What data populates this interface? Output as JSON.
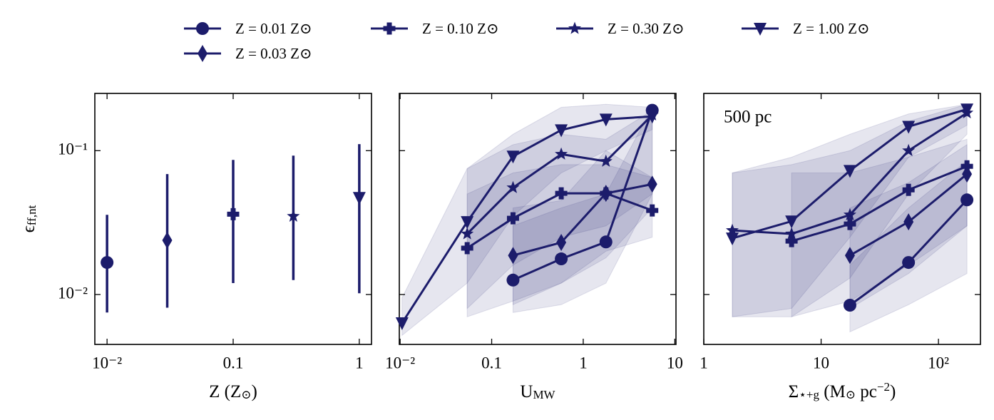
{
  "chart_data": [
    {
      "type": "errorbar",
      "xlabel_parts": [
        {
          "text": "Z (Z"
        },
        {
          "text": "⊙",
          "sub": true
        },
        {
          "text": ")"
        }
      ],
      "ylabel_parts": [
        {
          "text": "ϵ"
        },
        {
          "text": "ff,nt",
          "sub": true
        }
      ],
      "xscale": "log",
      "yscale": "log",
      "xlim": [
        0.008,
        1.25
      ],
      "ylim": [
        0.0045,
        0.25
      ],
      "xticks": [
        {
          "value": 0.01,
          "label": "10⁻²"
        },
        0.1,
        1
      ],
      "yticks": [
        {
          "value": 0.01,
          "label": "10⁻²"
        },
        {
          "value": 0.1,
          "label": "10⁻¹"
        }
      ],
      "ytick_labels": true,
      "series": [
        {
          "name": "Z = 0.01 Z⊙",
          "color": "#1c1c6b",
          "marker": "circle",
          "x": [
            0.01
          ],
          "values": [
            0.0167
          ],
          "yerr_low": [
            0.0075
          ],
          "yerr_high": [
            0.0358
          ]
        },
        {
          "name": "Z = 0.03 Z⊙",
          "color": "#1c1c6b",
          "marker": "diamond",
          "x": [
            0.03
          ],
          "values": [
            0.0238
          ],
          "yerr_low": [
            0.0081
          ],
          "yerr_high": [
            0.0687
          ]
        },
        {
          "name": "Z = 0.10 Z⊙",
          "color": "#1c1c6b",
          "marker": "plus",
          "x": [
            0.1
          ],
          "values": [
            0.0362
          ],
          "yerr_low": [
            0.012
          ],
          "yerr_high": [
            0.0863
          ]
        },
        {
          "name": "Z = 0.30 Z⊙",
          "color": "#1c1c6b",
          "marker": "star",
          "x": [
            0.3
          ],
          "values": [
            0.035
          ],
          "yerr_low": [
            0.0126
          ],
          "yerr_high": [
            0.0923
          ]
        },
        {
          "name": "Z = 1.00 Z⊙",
          "color": "#1c1c6b",
          "marker": "triangle_down",
          "x": [
            1
          ],
          "values": [
            0.0471
          ],
          "yerr_low": [
            0.0102
          ],
          "yerr_high": [
            0.111
          ]
        }
      ]
    },
    {
      "type": "line",
      "xlabel_parts": [
        {
          "text": "U"
        },
        {
          "text": "MW",
          "sub": true
        }
      ],
      "xscale": "log",
      "yscale": "log",
      "xlim": [
        0.0098,
        10.3
      ],
      "ylim": [
        0.0045,
        0.25
      ],
      "xticks": [
        {
          "value": 0.01,
          "label": "10⁻²"
        },
        0.1,
        1,
        10
      ],
      "yticks": [
        0.01,
        0.1
      ],
      "ytick_labels": false,
      "series": [
        {
          "color": "#1c1c6b",
          "marker": "circle",
          "x": [
            0.171,
            0.575,
            1.77,
            5.67
          ],
          "values": [
            0.0126,
            0.0177,
            0.0232,
            0.191
          ],
          "band_low": [
            0.0075,
            0.0085,
            0.012,
            0.05
          ],
          "band_high": [
            0.03,
            0.04,
            0.05,
            0.2
          ]
        },
        {
          "color": "#1c1c6b",
          "marker": "diamond",
          "x": [
            0.171,
            0.575,
            1.77,
            5.67
          ],
          "values": [
            0.0187,
            0.023,
            0.0505,
            0.0585
          ],
          "band_low": [
            0.0085,
            0.012,
            0.018,
            0.04
          ],
          "band_high": [
            0.04,
            0.045,
            0.1,
            0.065
          ]
        },
        {
          "color": "#1c1c6b",
          "marker": "plus",
          "x": [
            0.054,
            0.171,
            0.575,
            1.77,
            5.67
          ],
          "values": [
            0.021,
            0.0339,
            0.0505,
            0.0505,
            0.0384
          ],
          "band_low": [
            0.007,
            0.009,
            0.012,
            0.02,
            0.025
          ],
          "band_high": [
            0.05,
            0.07,
            0.08,
            0.08,
            0.065
          ]
        },
        {
          "color": "#1c1c6b",
          "marker": "star",
          "x": [
            0.054,
            0.171,
            0.575,
            1.77,
            5.67
          ],
          "values": [
            0.0264,
            0.0553,
            0.0945,
            0.0843,
            0.177
          ],
          "band_low": [
            0.008,
            0.016,
            0.025,
            0.03,
            0.05
          ],
          "band_high": [
            0.075,
            0.11,
            0.13,
            0.12,
            0.19
          ]
        },
        {
          "color": "#1c1c6b",
          "marker": "triangle_down",
          "x": [
            0.0105,
            0.054,
            0.171,
            0.575,
            1.77,
            5.67
          ],
          "values": [
            0.00634,
            0.032,
            0.0913,
            0.139,
            0.165,
            0.173
          ],
          "band_low": [
            0.0052,
            0.012,
            0.035,
            0.07,
            0.1,
            0.14
          ],
          "band_high": [
            0.0095,
            0.075,
            0.13,
            0.2,
            0.21,
            0.2
          ]
        }
      ]
    },
    {
      "type": "line",
      "xlabel_parts": [
        {
          "text": "Σ"
        },
        {
          "text": "⋆+g",
          "sub": true
        },
        {
          "text": " (M"
        },
        {
          "text": "⊙",
          "sub": true
        },
        {
          "text": " pc"
        },
        {
          "text": "−2",
          "sup": true
        },
        {
          "text": ")"
        }
      ],
      "annotation": "500 pc",
      "xscale": "log",
      "yscale": "log",
      "xlim": [
        1,
        228
      ],
      "ylim": [
        0.0045,
        0.25
      ],
      "xticks": [
        1,
        10,
        {
          "value": 100,
          "label": "10²"
        }
      ],
      "yticks": [
        0.01,
        0.1
      ],
      "ytick_labels": false,
      "series": [
        {
          "color": "#1c1c6b",
          "marker": "circle",
          "x": [
            17.6,
            55.6,
            175
          ],
          "values": [
            0.00843,
            0.0167,
            0.0455
          ],
          "band_low": [
            0.0055,
            0.0085,
            0.014
          ],
          "band_high": [
            0.016,
            0.04,
            0.085
          ]
        },
        {
          "color": "#1c1c6b",
          "marker": "diamond",
          "x": [
            17.6,
            55.6,
            175
          ],
          "values": [
            0.0187,
            0.032,
            0.0687
          ],
          "band_low": [
            0.008,
            0.014,
            0.03
          ],
          "band_high": [
            0.04,
            0.06,
            0.11
          ]
        },
        {
          "color": "#1c1c6b",
          "marker": "plus",
          "x": [
            5.6,
            17.6,
            55.6,
            175
          ],
          "values": [
            0.0235,
            0.0309,
            0.0534,
            0.0778
          ],
          "band_low": [
            0.007,
            0.009,
            0.016,
            0.03
          ],
          "band_high": [
            0.07,
            0.07,
            0.09,
            0.12
          ]
        },
        {
          "color": "#1c1c6b",
          "marker": "star",
          "x": [
            1.75,
            5.6,
            17.6,
            55.6,
            175
          ],
          "values": [
            0.0279,
            0.0264,
            0.0358,
            0.1,
            0.183
          ],
          "band_low": [
            0.007,
            0.007,
            0.013,
            0.05,
            0.13
          ],
          "band_high": [
            0.07,
            0.08,
            0.1,
            0.16,
            0.21
          ]
        },
        {
          "color": "#1c1c6b",
          "marker": "triangle_down",
          "x": [
            1.75,
            5.6,
            17.6,
            55.6,
            175
          ],
          "values": [
            0.0246,
            0.0323,
            0.0726,
            0.147,
            0.194
          ],
          "band_low": [
            0.007,
            0.008,
            0.025,
            0.09,
            0.15
          ],
          "band_high": [
            0.07,
            0.09,
            0.13,
            0.18,
            0.21
          ]
        }
      ]
    }
  ]
}
